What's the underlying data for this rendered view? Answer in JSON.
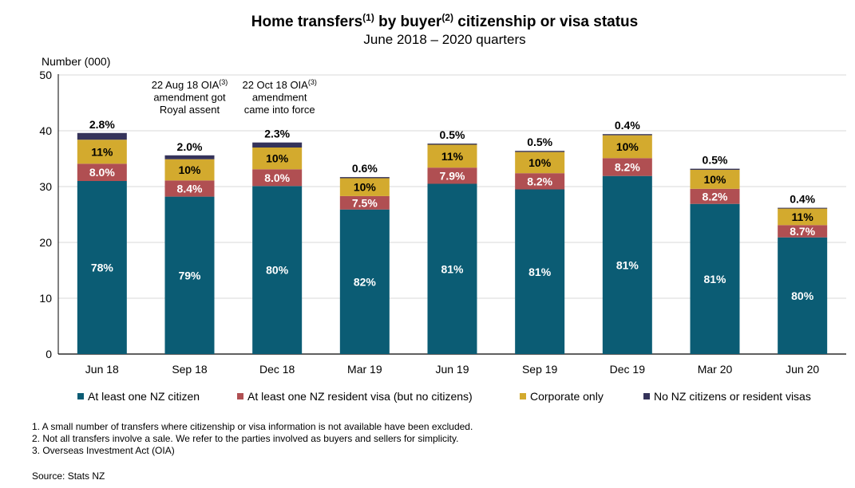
{
  "chart_data": {
    "type": "bar",
    "stacked": true,
    "title": "Home transfers(1) by buyer(2) citizenship or visa status",
    "title_parts": [
      "Home transfers",
      "(1)",
      " by buyer",
      "(2)",
      " citizenship or visa status"
    ],
    "subtitle": "June 2018 – 2020 quarters",
    "ylabel": "Number (000)",
    "ylim": [
      0,
      50
    ],
    "yticks": [
      0,
      10,
      20,
      30,
      40,
      50
    ],
    "grid": true,
    "legend_position": "bottom",
    "categories": [
      "Jun 18",
      "Sep 18",
      "Dec 18",
      "Mar 19",
      "Jun 19",
      "Sep 19",
      "Dec 19",
      "Mar 20",
      "Jun 20"
    ],
    "series": [
      {
        "name": "At least one NZ citizen",
        "color": "#0b5c74",
        "label_color": "#ffffff",
        "values": [
          31.0,
          28.2,
          30.1,
          25.9,
          30.5,
          29.5,
          31.9,
          26.9,
          20.9
        ],
        "labels": [
          "78%",
          "79%",
          "80%",
          "82%",
          "81%",
          "81%",
          "81%",
          "81%",
          "80%"
        ]
      },
      {
        "name": "At least one NZ resident visa (but no citizens)",
        "color": "#b04f52",
        "label_color": "#ffffff",
        "values": [
          3.1,
          2.9,
          3.0,
          2.4,
          2.9,
          2.9,
          3.2,
          2.7,
          2.2
        ],
        "labels": [
          "8.0%",
          "8.4%",
          "8.0%",
          "7.5%",
          "7.9%",
          "8.2%",
          "8.2%",
          "8.2%",
          "8.7%"
        ]
      },
      {
        "name": "Corporate only",
        "color": "#d3aa2e",
        "label_color": "#000000",
        "values": [
          4.3,
          3.8,
          3.9,
          3.2,
          4.1,
          3.8,
          4.1,
          3.4,
          3.0
        ],
        "labels": [
          "11%",
          "10%",
          "10%",
          "10%",
          "11%",
          "10%",
          "10%",
          "10%",
          "11%"
        ]
      },
      {
        "name": "No NZ citizens or resident visas",
        "color": "#35335a",
        "label_color": "#000000",
        "values": [
          1.2,
          0.7,
          0.9,
          0.2,
          0.2,
          0.2,
          0.2,
          0.2,
          0.1
        ],
        "labels": [
          "2.8%",
          "2.0%",
          "2.3%",
          "0.6%",
          "0.5%",
          "0.5%",
          "0.4%",
          "0.5%",
          "0.4%"
        ]
      }
    ],
    "annotations": [
      {
        "category": "Sep 18",
        "lines": [
          "22 Aug 18 OIA",
          "amendment got",
          "Royal assent"
        ],
        "sup": "(3)"
      },
      {
        "category": "Dec 18",
        "lines": [
          "22 Oct 18 OIA",
          "amendment",
          "came into force"
        ],
        "sup": "(3)"
      }
    ]
  },
  "footnotes": [
    "1. A small number of transfers where citizenship or visa information is not available have been excluded.",
    "2. Not all transfers involve a sale. We refer to the parties involved as buyers and sellers for simplicity.",
    "3. Overseas Investment Act (OIA)"
  ],
  "source": "Source: Stats NZ"
}
